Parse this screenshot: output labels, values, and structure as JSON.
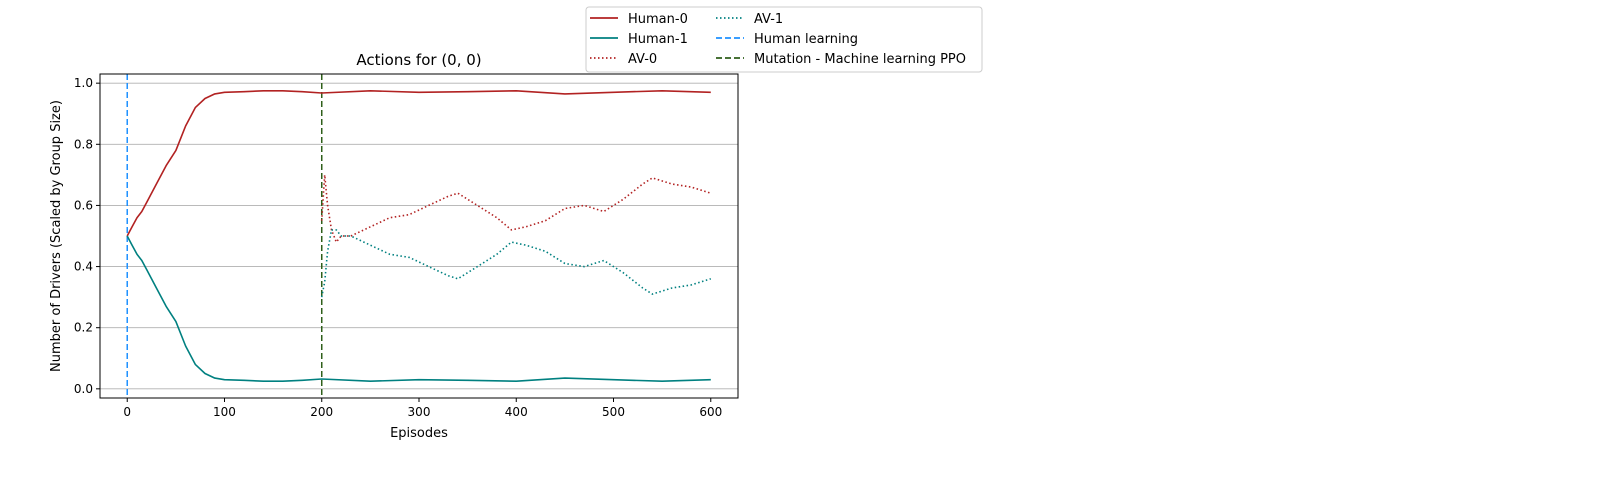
{
  "chart_data": {
    "type": "line",
    "title": "Actions for (0, 0)",
    "xlabel": "Episodes",
    "ylabel": "Number of Drivers (Scaled by Group Size)",
    "xlim": [
      -28,
      628
    ],
    "ylim": [
      -0.03,
      1.03
    ],
    "xticks": [
      0,
      100,
      200,
      300,
      400,
      500,
      600
    ],
    "yticks": [
      0.0,
      0.2,
      0.4,
      0.6,
      0.8,
      1.0
    ],
    "grid": "horizontal",
    "legend_placement": "upper-right outside",
    "series": [
      {
        "name": "Human-0",
        "color": "#b22222",
        "style": "solid",
        "x": [
          0,
          5,
          10,
          15,
          20,
          30,
          40,
          50,
          60,
          70,
          80,
          90,
          100,
          120,
          140,
          160,
          180,
          200,
          250,
          300,
          350,
          400,
          450,
          500,
          550,
          600
        ],
        "y": [
          0.5,
          0.53,
          0.56,
          0.58,
          0.61,
          0.67,
          0.73,
          0.78,
          0.86,
          0.92,
          0.95,
          0.965,
          0.97,
          0.972,
          0.975,
          0.975,
          0.972,
          0.968,
          0.975,
          0.97,
          0.972,
          0.975,
          0.965,
          0.97,
          0.975,
          0.97
        ]
      },
      {
        "name": "Human-1",
        "color": "#008080",
        "style": "solid",
        "x": [
          0,
          5,
          10,
          15,
          20,
          30,
          40,
          50,
          60,
          70,
          80,
          90,
          100,
          120,
          140,
          160,
          180,
          200,
          250,
          300,
          350,
          400,
          450,
          500,
          550,
          600
        ],
        "y": [
          0.5,
          0.47,
          0.44,
          0.42,
          0.39,
          0.33,
          0.27,
          0.22,
          0.14,
          0.08,
          0.05,
          0.035,
          0.03,
          0.028,
          0.025,
          0.025,
          0.028,
          0.032,
          0.025,
          0.03,
          0.028,
          0.025,
          0.035,
          0.03,
          0.025,
          0.03
        ]
      },
      {
        "name": "AV-0",
        "color": "#b22222",
        "style": "dotted",
        "x": [
          200,
          203,
          206,
          210,
          215,
          220,
          230,
          250,
          270,
          290,
          310,
          330,
          340,
          360,
          380,
          395,
          410,
          430,
          450,
          470,
          490,
          510,
          530,
          540,
          560,
          580,
          600
        ],
        "y": [
          0.55,
          0.7,
          0.6,
          0.52,
          0.48,
          0.5,
          0.5,
          0.53,
          0.56,
          0.57,
          0.6,
          0.63,
          0.64,
          0.6,
          0.56,
          0.52,
          0.53,
          0.55,
          0.59,
          0.6,
          0.58,
          0.62,
          0.67,
          0.69,
          0.67,
          0.66,
          0.64
        ]
      },
      {
        "name": "AV-1",
        "color": "#008080",
        "style": "dotted",
        "x": [
          200,
          203,
          206,
          210,
          215,
          220,
          230,
          250,
          270,
          290,
          310,
          330,
          340,
          360,
          380,
          395,
          410,
          430,
          450,
          470,
          490,
          510,
          530,
          540,
          560,
          580,
          600
        ],
        "y": [
          0.3,
          0.35,
          0.45,
          0.52,
          0.52,
          0.5,
          0.5,
          0.47,
          0.44,
          0.43,
          0.4,
          0.37,
          0.36,
          0.4,
          0.44,
          0.48,
          0.47,
          0.45,
          0.41,
          0.4,
          0.42,
          0.38,
          0.33,
          0.31,
          0.33,
          0.34,
          0.36
        ]
      }
    ],
    "vlines": [
      {
        "name": "Human learning",
        "x": 0,
        "color": "#1e90ff",
        "style": "dashed"
      },
      {
        "name": "Mutation - Machine learning PPO",
        "x": 200,
        "color": "#2f5f1a",
        "style": "dashed"
      }
    ]
  }
}
